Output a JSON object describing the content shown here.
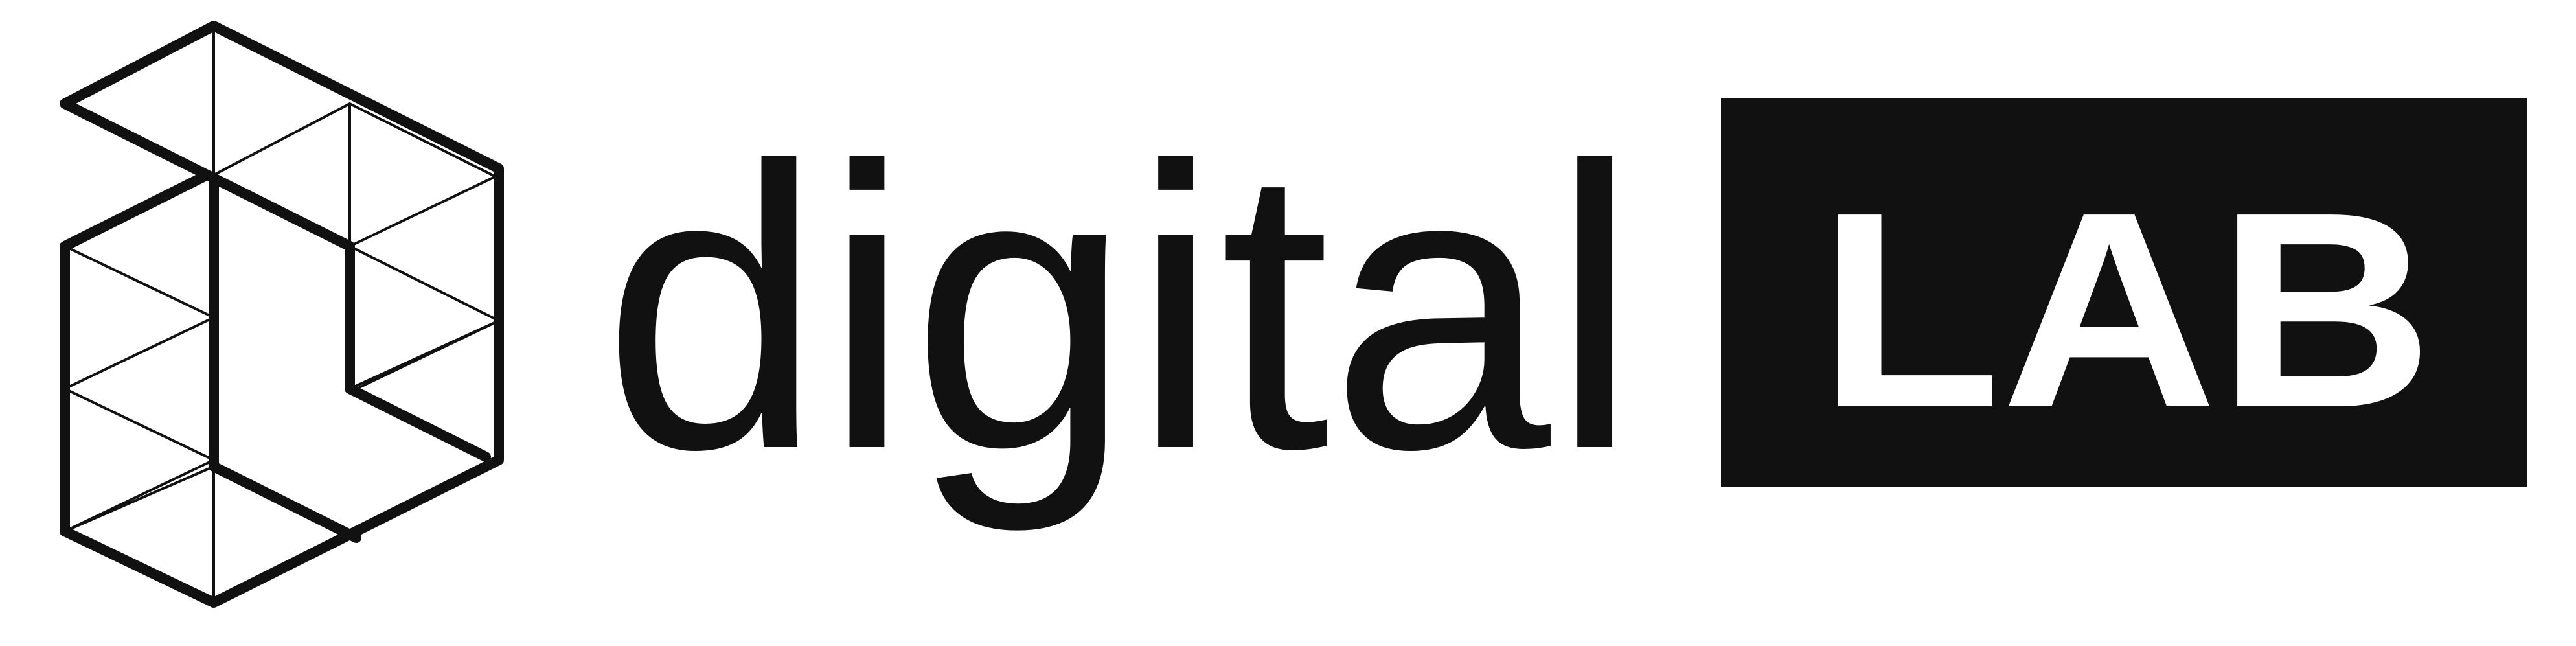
{
  "logo": {
    "word_primary": "digital",
    "word_secondary": "LAB",
    "colors": {
      "ink": "#111111",
      "background": "#ffffff",
      "inverse_text": "#ffffff"
    },
    "icon": "hexagon-triangle-mesh-icon"
  }
}
